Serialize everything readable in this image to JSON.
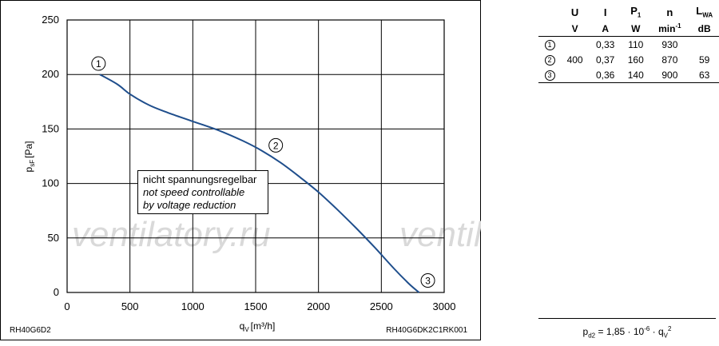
{
  "chart_data": {
    "type": "line",
    "title": "",
    "xlabel": {
      "symbol": "q",
      "sub": "V",
      "unit": "[m³/h]"
    },
    "ylabel": {
      "symbol": "p",
      "sub": "sF",
      "unit": "[Pa]"
    },
    "xlim": [
      0,
      3000
    ],
    "ylim": [
      0,
      250
    ],
    "x_ticks": [
      0,
      500,
      1000,
      1500,
      2000,
      2500,
      3000
    ],
    "y_ticks": [
      0,
      50,
      100,
      150,
      200,
      250
    ],
    "grid": true,
    "series": [
      {
        "color": "#1f4e8c",
        "points": [
          [
            260,
            200
          ],
          [
            400,
            191
          ],
          [
            500,
            182
          ],
          [
            650,
            172
          ],
          [
            800,
            165
          ],
          [
            1000,
            157
          ],
          [
            1200,
            149
          ],
          [
            1400,
            139
          ],
          [
            1550,
            130
          ],
          [
            1700,
            119
          ],
          [
            1850,
            106
          ],
          [
            2000,
            92
          ],
          [
            2150,
            76
          ],
          [
            2300,
            59
          ],
          [
            2450,
            41
          ],
          [
            2600,
            22
          ],
          [
            2720,
            8
          ],
          [
            2800,
            0
          ]
        ]
      }
    ],
    "markers": [
      {
        "label": "1",
        "x": 250,
        "y": 210
      },
      {
        "label": "2",
        "x": 1660,
        "y": 135
      },
      {
        "label": "3",
        "x": 2870,
        "y": 11
      }
    ],
    "annotation": [
      "nicht spannungsregelbar",
      "not speed controllable",
      "by voltage reduction"
    ],
    "model_left": "RH40G6D2",
    "model_right": "RH40G6DK2C1RK001"
  },
  "watermark": "ventilatory.ru",
  "table": {
    "headers": [
      {
        "main": "U",
        "sub": ""
      },
      {
        "main": "I",
        "sub": ""
      },
      {
        "main": "P",
        "sub": "1"
      },
      {
        "main": "n",
        "sub": ""
      },
      {
        "main": "L",
        "sub": "WA"
      }
    ],
    "units": [
      "V",
      "A",
      "W",
      "min",
      "dB"
    ],
    "units_sup": "-1",
    "rows": [
      {
        "id": "1",
        "U": "",
        "I": "0,33",
        "P": "110",
        "n": "930",
        "L": ""
      },
      {
        "id": "2",
        "U": "400",
        "I": "0,37",
        "P": "160",
        "n": "870",
        "L": "59"
      },
      {
        "id": "3",
        "U": "",
        "I": "0,36",
        "P": "140",
        "n": "900",
        "L": "63"
      }
    ]
  },
  "formula": {
    "p": "p",
    "p_sub": "d2",
    "eq": " = 1,85 · 10",
    "exp": "-6",
    "dot": " · q",
    "q_sub": "V",
    "q_sup": "2"
  }
}
